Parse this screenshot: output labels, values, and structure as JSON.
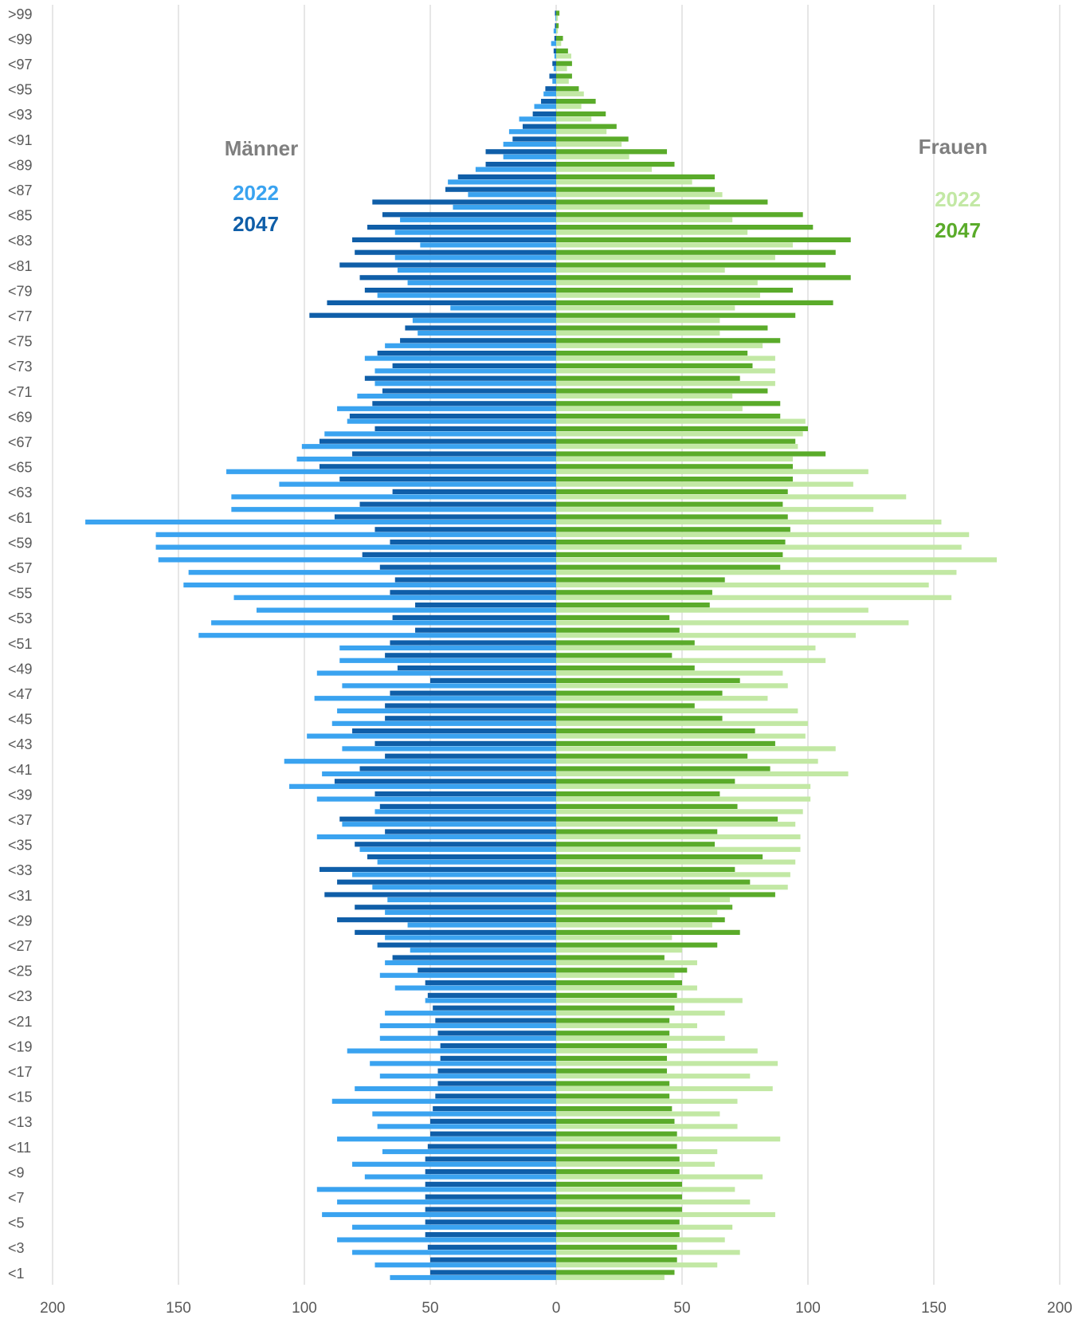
{
  "chart_data": {
    "type": "pyramid",
    "categories": [
      ">99",
      null,
      "<99",
      null,
      "<97",
      null,
      "<95",
      null,
      "<93",
      null,
      "<91",
      null,
      "<89",
      null,
      "<87",
      null,
      "<85",
      null,
      "<83",
      null,
      "<81",
      null,
      "<79",
      null,
      "<77",
      null,
      "<75",
      null,
      "<73",
      null,
      "<71",
      null,
      "<69",
      null,
      "<67",
      null,
      "<65",
      null,
      "<63",
      null,
      "<61",
      null,
      "<59",
      null,
      "<57",
      null,
      "<55",
      null,
      "<53",
      null,
      "<51",
      null,
      "<49",
      null,
      "<47",
      null,
      "<45",
      null,
      "<43",
      null,
      "<41",
      null,
      "<39",
      null,
      "<37",
      null,
      "<35",
      null,
      "<33",
      null,
      "<31",
      null,
      "<29",
      null,
      "<27",
      null,
      "<25",
      null,
      "<23",
      null,
      "<21",
      null,
      "<19",
      null,
      "<17",
      null,
      "<15",
      null,
      "<13",
      null,
      "<11",
      null,
      "<9",
      null,
      "<7",
      null,
      "<5",
      null,
      "<3",
      null,
      "<1"
    ],
    "groups": [
      {
        "label": "Männer",
        "label_color": "#7f7f7f",
        "series": [
          {
            "name": "2022",
            "color": "#3aa3f0",
            "values": [
              0.3,
              1,
              2,
              0.7,
              1,
              1.5,
              5,
              8.7,
              14.7,
              18.7,
              21,
              21,
              32,
              43,
              35,
              41,
              62,
              64,
              54,
              64,
              63,
              59,
              71,
              42,
              57,
              55,
              68,
              76,
              72,
              72,
              79,
              87,
              83,
              92,
              101,
              103,
              131,
              110,
              129,
              129,
              187,
              159,
              159,
              158,
              146,
              148,
              128,
              119,
              137,
              142,
              86,
              86,
              95,
              85,
              96,
              87,
              89,
              99,
              85,
              108,
              93,
              106,
              95,
              72,
              85,
              95,
              78,
              71,
              81,
              73,
              67,
              68,
              59,
              68,
              58,
              68,
              70,
              64,
              52,
              68,
              70,
              70,
              83,
              74,
              70,
              80,
              89,
              73,
              71,
              87,
              69,
              81,
              76,
              95,
              87,
              93,
              81,
              87,
              81,
              72,
              66
            ]
          },
          {
            "name": "2047",
            "color": "#0f5ea8",
            "values": [
              0.5,
              0.5,
              0.7,
              1,
              1.5,
              2.7,
              4.3,
              6,
              9.3,
              13.3,
              17.3,
              28,
              28,
              39,
              44,
              73,
              69,
              75,
              81,
              80,
              86,
              78,
              76,
              91,
              98,
              60,
              62,
              71,
              65,
              76,
              69,
              73,
              82,
              72,
              94,
              81,
              94,
              86,
              65,
              78,
              88,
              72,
              66,
              77,
              70,
              64,
              66,
              56,
              65,
              56,
              66,
              68,
              63,
              50,
              66,
              68,
              68,
              81,
              72,
              68,
              78,
              88,
              72,
              70,
              86,
              68,
              80,
              75,
              94,
              87,
              92,
              80,
              87,
              80,
              71,
              65,
              55,
              52,
              51,
              49,
              48,
              47,
              46,
              46,
              47,
              47,
              48,
              49,
              50,
              50,
              51,
              52,
              52,
              52,
              52,
              52,
              52,
              52,
              51,
              50,
              50
            ]
          }
        ]
      },
      {
        "label": "Frauen",
        "label_color": "#7f7f7f",
        "series": [
          {
            "name": "2022",
            "color": "#c2e8a4",
            "values": [
              0.7,
              0.7,
              2,
              6,
              4.3,
              5,
              11,
              10,
              14,
              20,
              26,
              29,
              38,
              54,
              66,
              61,
              70,
              76,
              94,
              87,
              67,
              80,
              81,
              71,
              65,
              65,
              82,
              87,
              87,
              87,
              70,
              74,
              99,
              98,
              96,
              94,
              124,
              118,
              139,
              126,
              153,
              164,
              161,
              175,
              159,
              148,
              157,
              124,
              140,
              119,
              103,
              107,
              90,
              92,
              84,
              96,
              100,
              99,
              111,
              104,
              116,
              101,
              101,
              98,
              95,
              97,
              97,
              95,
              93,
              92,
              69,
              64,
              62,
              46,
              50,
              56,
              47,
              56,
              74,
              67,
              56,
              67,
              80,
              88,
              77,
              86,
              72,
              65,
              72,
              89,
              64,
              63,
              82,
              71,
              77,
              87,
              70,
              67,
              73,
              64,
              43
            ]
          },
          {
            "name": "2047",
            "color": "#5aab2a",
            "values": [
              1.3,
              1,
              2.7,
              4.7,
              6.3,
              6.3,
              9,
              15.7,
              19.7,
              24,
              28.7,
              44,
              47,
              63,
              63,
              84,
              98,
              102,
              117,
              111,
              107,
              117,
              94,
              110,
              95,
              84,
              89,
              76,
              78,
              73,
              84,
              89,
              89,
              100,
              95,
              107,
              94,
              94,
              92,
              90,
              92,
              93,
              91,
              90,
              89,
              67,
              62,
              61,
              45,
              49,
              55,
              46,
              55,
              73,
              66,
              55,
              66,
              79,
              87,
              76,
              85,
              71,
              65,
              72,
              88,
              64,
              63,
              82,
              71,
              77,
              87,
              70,
              67,
              73,
              64,
              43,
              52,
              50,
              48,
              47,
              45,
              45,
              44,
              44,
              44,
              45,
              45,
              46,
              47,
              48,
              48,
              49,
              49,
              50,
              50,
              50,
              49,
              49,
              48,
              48,
              47
            ]
          }
        ]
      }
    ],
    "xlim": [
      -200,
      200
    ],
    "xticks": [
      {
        "value": -200,
        "label": "200"
      },
      {
        "value": -150,
        "label": "150"
      },
      {
        "value": -100,
        "label": "100"
      },
      {
        "value": -50,
        "label": "50"
      },
      0,
      50,
      100,
      150,
      200
    ],
    "grid": true
  }
}
